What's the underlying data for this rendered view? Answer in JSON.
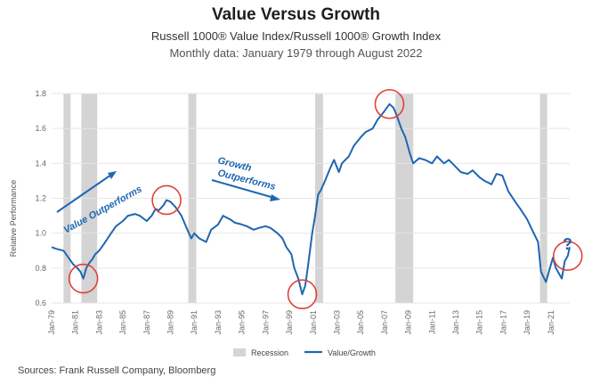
{
  "header": {
    "title": "Value Versus Growth",
    "subtitle": "Russell 1000® Value Index/Russell 1000® Growth Index",
    "subtitle2": "Monthly data: January 1979 through August 2022"
  },
  "source": "Sources: Frank Russell Company, Bloomberg",
  "annotations": {
    "value_outperforms": "Value Outperforms",
    "growth_outperforms_1": "Growth",
    "growth_outperforms_2": "Outperforms",
    "question": "?"
  },
  "colors": {
    "line": "#1f67b1",
    "recession": "#d4d4d4",
    "circle": "#e0413b",
    "grid": "#e6e6e6"
  },
  "chart_data": {
    "type": "line",
    "ylabel": "Relative Performance",
    "ylim": [
      0.6,
      1.8
    ],
    "yticks": [
      "0.6",
      "0.8",
      "1.0",
      "1.2",
      "1.4",
      "1.6",
      "1.8"
    ],
    "xlim": [
      "1979-01",
      "2022-08"
    ],
    "xticks": [
      "Jan-79",
      "Jan-81",
      "Jan-83",
      "Jan-85",
      "Jan-87",
      "Jan-89",
      "Jan-91",
      "Jan-93",
      "Jan-95",
      "Jan-97",
      "Jan-99",
      "Jan-01",
      "Jan-03",
      "Jan-05",
      "Jan-07",
      "Jan-09",
      "Jan-11",
      "Jan-13",
      "Jan-15",
      "Jan-17",
      "Jan-19",
      "Jan-21"
    ],
    "grid": "horizontal",
    "legend": {
      "recession": "Recession",
      "series": "Value/Growth",
      "placement": "bottom-center"
    },
    "recessions": [
      [
        "1980-01",
        "1980-07"
      ],
      [
        "1981-07",
        "1982-11"
      ],
      [
        "1990-07",
        "1991-03"
      ],
      [
        "2001-03",
        "2001-11"
      ],
      [
        "2007-12",
        "2009-06"
      ],
      [
        "2020-02",
        "2020-04"
      ]
    ],
    "highlighted_extremes": [
      "1981-09",
      "1988-09",
      "2000-02",
      "2007-06",
      "2022-06"
    ],
    "series": [
      {
        "name": "Value/Growth",
        "x": [
          "1979-01",
          "1979-06",
          "1980-01",
          "1980-06",
          "1980-11",
          "1981-03",
          "1981-06",
          "1981-09",
          "1981-12",
          "1982-03",
          "1982-06",
          "1982-09",
          "1983-01",
          "1983-06",
          "1984-01",
          "1984-06",
          "1985-01",
          "1985-06",
          "1986-01",
          "1986-06",
          "1987-01",
          "1987-06",
          "1987-10",
          "1988-01",
          "1988-06",
          "1988-09",
          "1989-01",
          "1989-06",
          "1989-12",
          "1990-06",
          "1990-10",
          "1991-01",
          "1991-06",
          "1992-01",
          "1992-06",
          "1993-01",
          "1993-06",
          "1994-01",
          "1994-06",
          "1995-01",
          "1995-06",
          "1996-01",
          "1996-06",
          "1997-01",
          "1997-06",
          "1998-01",
          "1998-06",
          "1998-10",
          "1999-03",
          "1999-06",
          "1999-10",
          "2000-02",
          "2000-05",
          "2000-08",
          "2000-12",
          "2001-03",
          "2001-06",
          "2001-09",
          "2002-01",
          "2002-06",
          "2002-10",
          "2003-03",
          "2003-06",
          "2004-01",
          "2004-06",
          "2005-01",
          "2005-06",
          "2006-01",
          "2006-06",
          "2007-01",
          "2007-06",
          "2007-10",
          "2008-01",
          "2008-06",
          "2008-10",
          "2009-03",
          "2009-06",
          "2009-12",
          "2010-06",
          "2011-01",
          "2011-06",
          "2012-01",
          "2012-06",
          "2013-01",
          "2013-06",
          "2014-01",
          "2014-06",
          "2015-01",
          "2015-06",
          "2016-01",
          "2016-06",
          "2016-12",
          "2017-06",
          "2018-01",
          "2018-06",
          "2019-01",
          "2019-06",
          "2019-12",
          "2020-03",
          "2020-08",
          "2020-12",
          "2021-03",
          "2021-06",
          "2021-12",
          "2022-03",
          "2022-06",
          "2022-08"
        ],
        "values": [
          0.92,
          0.91,
          0.9,
          0.86,
          0.82,
          0.8,
          0.78,
          0.74,
          0.8,
          0.83,
          0.85,
          0.88,
          0.9,
          0.94,
          1.0,
          1.04,
          1.07,
          1.1,
          1.11,
          1.1,
          1.07,
          1.1,
          1.14,
          1.13,
          1.16,
          1.19,
          1.18,
          1.15,
          1.1,
          1.02,
          0.97,
          1.0,
          0.97,
          0.95,
          1.02,
          1.05,
          1.1,
          1.08,
          1.06,
          1.05,
          1.04,
          1.02,
          1.03,
          1.04,
          1.03,
          1.0,
          0.97,
          0.92,
          0.88,
          0.8,
          0.74,
          0.65,
          0.7,
          0.82,
          1.0,
          1.1,
          1.22,
          1.25,
          1.3,
          1.37,
          1.42,
          1.35,
          1.4,
          1.44,
          1.5,
          1.55,
          1.58,
          1.6,
          1.65,
          1.7,
          1.74,
          1.72,
          1.68,
          1.6,
          1.55,
          1.45,
          1.4,
          1.43,
          1.42,
          1.4,
          1.44,
          1.4,
          1.42,
          1.38,
          1.35,
          1.34,
          1.36,
          1.32,
          1.3,
          1.28,
          1.34,
          1.33,
          1.24,
          1.18,
          1.14,
          1.08,
          1.02,
          0.95,
          0.78,
          0.72,
          0.8,
          0.86,
          0.8,
          0.74,
          0.84,
          0.87,
          0.92
        ]
      }
    ]
  }
}
